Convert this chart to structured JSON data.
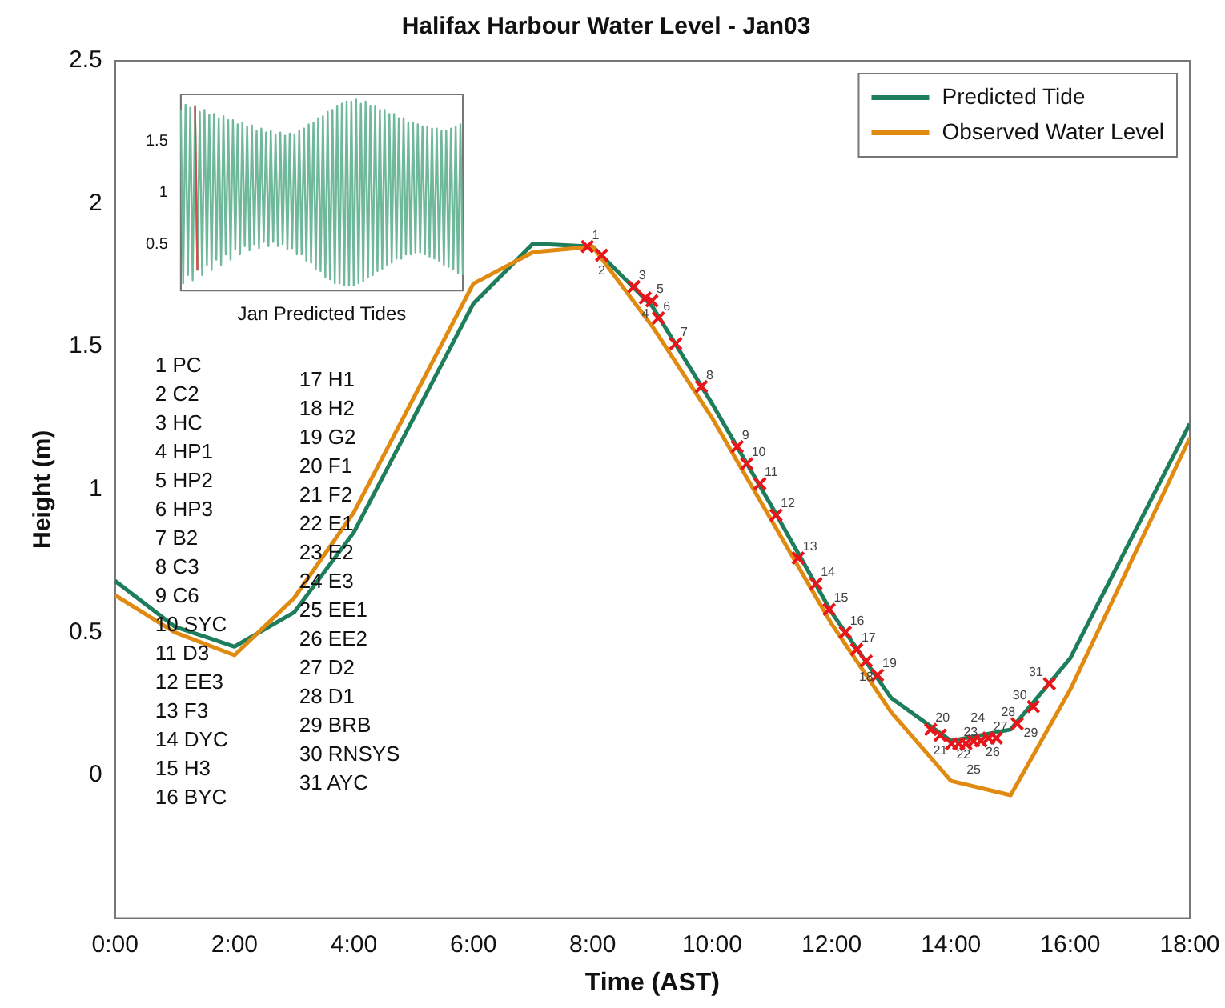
{
  "chart_data": [
    {
      "type": "line",
      "title": "Halifax Harbour Water Level - Jan03",
      "xlabel": "Time (AST)",
      "ylabel": "Height (m)",
      "xlim": [
        0,
        18
      ],
      "xticks": [
        {
          "value": 0,
          "label": "0:00"
        },
        {
          "value": 2,
          "label": "2:00"
        },
        {
          "value": 4,
          "label": "4:00"
        },
        {
          "value": 6,
          "label": "6:00"
        },
        {
          "value": 8,
          "label": "8:00"
        },
        {
          "value": 10,
          "label": "10:00"
        },
        {
          "value": 12,
          "label": "12:00"
        },
        {
          "value": 14,
          "label": "14:00"
        },
        {
          "value": 16,
          "label": "16:00"
        },
        {
          "value": 18,
          "label": "18:00"
        }
      ],
      "ylim": [
        -0.5,
        2.5
      ],
      "yticks": [
        0,
        0.5,
        1,
        1.5,
        2,
        2.5
      ],
      "grid": false,
      "legend": "top right",
      "series": [
        {
          "name": "Predicted Tide",
          "color": "#1e7d5a",
          "x": [
            0,
            1,
            2,
            3,
            4,
            5,
            6,
            7,
            8,
            9,
            10,
            11,
            12,
            13,
            14,
            15,
            16,
            18
          ],
          "values": [
            0.68,
            0.52,
            0.45,
            0.57,
            0.85,
            1.25,
            1.65,
            1.86,
            1.85,
            1.64,
            1.3,
            0.94,
            0.57,
            0.27,
            0.12,
            0.16,
            0.41,
            1.23
          ]
        },
        {
          "name": "Observed Water Level",
          "color": "#e08a10",
          "x": [
            0,
            1,
            2,
            3,
            4,
            5,
            6,
            7,
            8,
            9,
            10,
            11,
            12,
            13,
            14,
            15,
            16,
            18
          ],
          "values": [
            0.63,
            0.5,
            0.42,
            0.62,
            0.92,
            1.32,
            1.72,
            1.83,
            1.85,
            1.57,
            1.25,
            0.89,
            0.53,
            0.22,
            -0.02,
            -0.07,
            0.3,
            1.18
          ]
        },
        {
          "type": "scatter",
          "marker": "cross",
          "color": "#e8161b",
          "x": [
            7.91,
            8.15,
            8.69,
            8.88,
            8.99,
            9.1,
            9.39,
            9.82,
            10.42,
            10.58,
            10.8,
            11.07,
            11.44,
            11.74,
            11.96,
            12.23,
            12.42,
            12.58,
            12.77,
            13.66,
            13.82,
            14.01,
            14.13,
            14.25,
            14.38,
            14.5,
            14.63,
            14.76,
            15.11,
            15.38,
            15.65
          ],
          "values": [
            1.85,
            1.82,
            1.71,
            1.67,
            1.66,
            1.6,
            1.51,
            1.36,
            1.15,
            1.09,
            1.02,
            0.91,
            0.76,
            0.67,
            0.58,
            0.5,
            0.44,
            0.4,
            0.35,
            0.16,
            0.14,
            0.11,
            0.11,
            0.11,
            0.12,
            0.12,
            0.13,
            0.13,
            0.18,
            0.24,
            0.32
          ]
        }
      ],
      "annotations": [
        "1 PC",
        "2 C2",
        "3 HC",
        "4 HP1",
        "5 HP2",
        "6 HP3",
        "7 B2",
        "8 C3",
        "9 C6",
        "10 SYC",
        "11 D3",
        "12 EE3",
        "13 F3",
        "14 DYC",
        "15 H3",
        "16 BYC",
        "17 H1",
        "18 H2",
        "19 G2",
        "20 F1",
        "21 F2",
        "22 E1",
        "23 E2",
        "24 E3",
        "25 EE1",
        "26 EE2",
        "27 D2",
        "28 D1",
        "29 BRB",
        "30 RNSYS",
        "31 AYC",
        {
          "text": "1",
          "x": 7.91,
          "y": 1.85
        },
        {
          "text": "2",
          "x": 8.15,
          "y": 1.82
        },
        {
          "text": "3",
          "x": 8.69,
          "y": 1.71
        },
        {
          "text": "4",
          "x": 8.88,
          "y": 1.67
        },
        {
          "text": "5",
          "x": 8.99,
          "y": 1.66
        },
        {
          "text": "6",
          "x": 9.1,
          "y": 1.6
        },
        {
          "text": "7",
          "x": 9.39,
          "y": 1.51
        },
        {
          "text": "8",
          "x": 9.82,
          "y": 1.36
        },
        {
          "text": "9",
          "x": 10.42,
          "y": 1.15
        },
        {
          "text": "10",
          "x": 10.58,
          "y": 1.09
        },
        {
          "text": "11",
          "x": 10.8,
          "y": 1.02
        },
        {
          "text": "12",
          "x": 11.07,
          "y": 0.91
        },
        {
          "text": "13",
          "x": 11.44,
          "y": 0.76
        },
        {
          "text": "14",
          "x": 11.74,
          "y": 0.67
        },
        {
          "text": "15",
          "x": 11.96,
          "y": 0.58
        },
        {
          "text": "16",
          "x": 12.23,
          "y": 0.5
        },
        {
          "text": "17",
          "x": 12.42,
          "y": 0.44
        },
        {
          "text": "18",
          "x": 12.58,
          "y": 0.4
        },
        {
          "text": "19",
          "x": 12.77,
          "y": 0.35
        },
        {
          "text": "20",
          "x": 13.66,
          "y": 0.16
        },
        {
          "text": "21",
          "x": 13.82,
          "y": 0.14
        },
        {
          "text": "22",
          "x": 14.01,
          "y": 0.11
        },
        {
          "text": "23",
          "x": 14.13,
          "y": 0.11
        },
        {
          "text": "24",
          "x": 14.25,
          "y": 0.11
        },
        {
          "text": "25",
          "x": 14.38,
          "y": 0.12
        },
        {
          "text": "26",
          "x": 14.5,
          "y": 0.12
        },
        {
          "text": "27",
          "x": 14.63,
          "y": 0.13
        },
        {
          "text": "28",
          "x": 14.76,
          "y": 0.13
        },
        {
          "text": "29",
          "x": 15.11,
          "y": 0.18
        },
        {
          "text": "30",
          "x": 15.38,
          "y": 0.24
        },
        {
          "text": "31",
          "x": 15.65,
          "y": 0.32
        }
      ]
    },
    {
      "type": "line",
      "xlabel": "Jan Predicted Tides",
      "tick_labels": "y",
      "grid": false,
      "categories": [
        null,
        null,
        null,
        null,
        null,
        null,
        null,
        null,
        null,
        null,
        null,
        null,
        null,
        null,
        null,
        null,
        null,
        null,
        null,
        null,
        null,
        null,
        null,
        null,
        null,
        null,
        null,
        null,
        null,
        null,
        null,
        null,
        null,
        null,
        null,
        null,
        null,
        null,
        null,
        null,
        null,
        null,
        null,
        null,
        null,
        null,
        null,
        null,
        null,
        null,
        null,
        null,
        null,
        null,
        null,
        null,
        null,
        null,
        null,
        null,
        null,
        null,
        null,
        null,
        null,
        null,
        null,
        null,
        null,
        null,
        null,
        null,
        null,
        null,
        null,
        null,
        null,
        null,
        null,
        null,
        null,
        null,
        null,
        null,
        null,
        null,
        null,
        null,
        null,
        null,
        null,
        null,
        null,
        null,
        null,
        null,
        null,
        null,
        null,
        null,
        null,
        null,
        null,
        null,
        null,
        null,
        null,
        null,
        null,
        null,
        null,
        null,
        null,
        null,
        null,
        null,
        null,
        null,
        null,
        null
      ],
      "ylim": [
        0.05,
        1.95
      ],
      "yticks": [
        0.5,
        1,
        1.5
      ],
      "series": [
        {
          "color": "#6fb89a",
          "values": [
            1.8,
            0.12,
            1.85,
            0.2,
            1.82,
            0.15,
            1.84,
            0.25,
            1.78,
            0.2,
            1.8,
            0.3,
            1.75,
            0.25,
            1.76,
            0.35,
            1.72,
            0.3,
            1.74,
            0.4,
            1.7,
            0.35,
            1.7,
            0.45,
            1.66,
            0.4,
            1.68,
            0.48,
            1.64,
            0.44,
            1.65,
            0.5,
            1.6,
            0.46,
            1.62,
            0.52,
            1.58,
            0.48,
            1.6,
            0.52,
            1.56,
            0.48,
            1.58,
            0.5,
            1.55,
            0.45,
            1.57,
            0.46,
            1.56,
            0.4,
            1.6,
            0.4,
            1.62,
            0.34,
            1.66,
            0.32,
            1.68,
            0.26,
            1.72,
            0.24,
            1.74,
            0.18,
            1.78,
            0.16,
            1.8,
            0.12,
            1.84,
            0.12,
            1.86,
            0.1,
            1.88,
            0.1,
            1.88,
            0.1,
            1.9,
            0.12,
            1.86,
            0.14,
            1.88,
            0.18,
            1.84,
            0.2,
            1.84,
            0.24,
            1.8,
            0.26,
            1.8,
            0.3,
            1.76,
            0.32,
            1.76,
            0.36,
            1.72,
            0.36,
            1.72,
            0.4,
            1.68,
            0.4,
            1.68,
            0.42,
            1.66,
            0.42,
            1.64,
            0.4,
            1.64,
            0.38,
            1.62,
            0.36,
            1.62,
            0.34,
            1.6,
            0.3,
            1.6,
            0.28,
            1.62,
            0.26,
            1.64,
            0.22,
            1.66,
            0.2
          ]
        },
        {
          "color": "#e04848",
          "values": [
            null,
            null,
            null,
            null,
            null,
            null,
            1.84,
            0.25,
            null,
            null,
            null,
            null,
            null,
            null,
            null,
            null,
            null,
            null,
            null,
            null,
            null,
            null,
            null,
            null,
            null,
            null,
            null,
            null,
            null,
            null,
            null,
            null,
            null,
            null,
            null,
            null,
            null,
            null,
            null,
            null,
            null,
            null,
            null,
            null,
            null,
            null,
            null,
            null,
            null,
            null,
            null,
            null,
            null,
            null,
            null,
            null,
            null,
            null,
            null,
            null,
            null,
            null,
            null,
            null,
            null,
            null,
            null,
            null,
            null,
            null,
            null,
            null,
            null,
            null,
            null,
            null,
            null,
            null,
            null,
            null,
            null,
            null,
            null,
            null,
            null,
            null,
            null,
            null,
            null,
            null,
            null,
            null,
            null,
            null,
            null,
            null,
            null,
            null,
            null,
            null,
            null,
            null,
            null,
            null,
            null,
            null,
            null,
            null,
            null,
            null,
            null,
            null,
            null,
            null,
            null,
            null,
            null,
            null,
            null,
            null
          ]
        }
      ]
    }
  ]
}
